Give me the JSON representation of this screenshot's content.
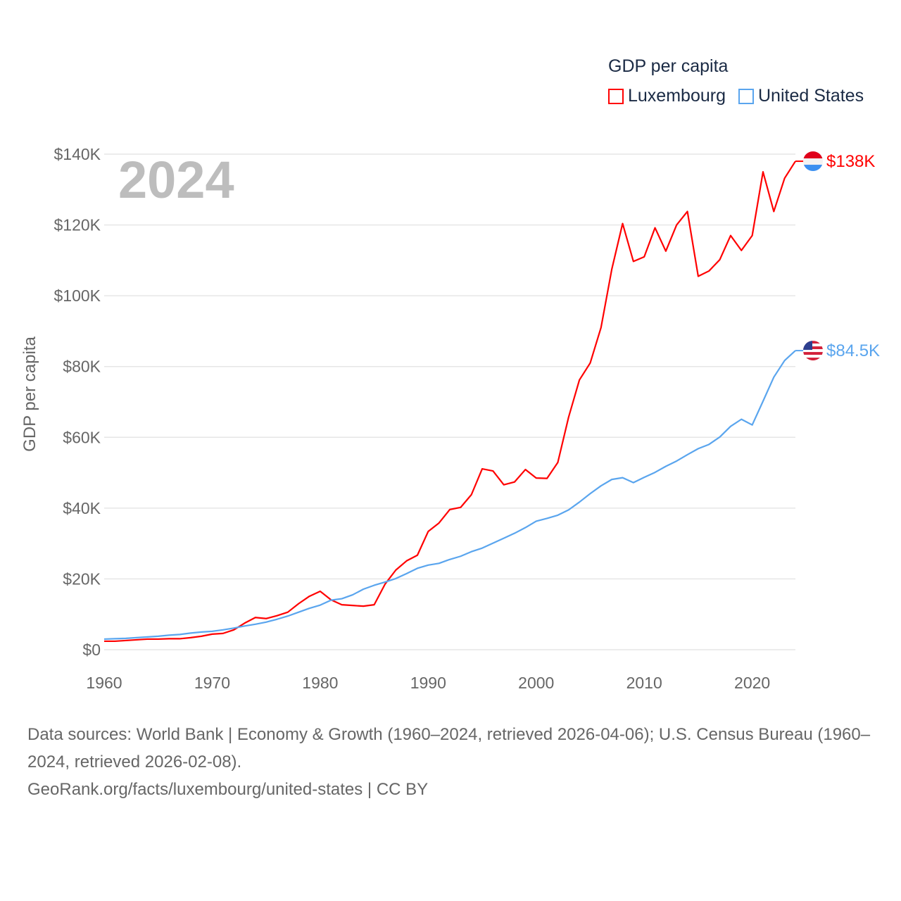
{
  "chart_data": {
    "type": "line",
    "legend_title": "GDP per capita",
    "ylabel": "GDP per capita",
    "xlabel": "",
    "year_label": "2024",
    "ylim": [
      0,
      140000
    ],
    "xlim": [
      1960,
      2024
    ],
    "yticks": [
      0,
      20000,
      40000,
      60000,
      80000,
      100000,
      120000,
      140000
    ],
    "ytick_labels": [
      "$0",
      "$20K",
      "$40K",
      "$60K",
      "$80K",
      "$100K",
      "$120K",
      "$140K"
    ],
    "xticks": [
      1960,
      1970,
      1980,
      1990,
      2000,
      2010,
      2020
    ],
    "xtick_labels": [
      "1960",
      "1970",
      "1980",
      "1990",
      "2000",
      "2010",
      "2020"
    ],
    "grid": true,
    "legend_placement": "top-right",
    "x": [
      1960,
      1961,
      1962,
      1963,
      1964,
      1965,
      1966,
      1967,
      1968,
      1969,
      1970,
      1971,
      1972,
      1973,
      1974,
      1975,
      1976,
      1977,
      1978,
      1979,
      1980,
      1981,
      1982,
      1983,
      1984,
      1985,
      1986,
      1987,
      1988,
      1989,
      1990,
      1991,
      1992,
      1993,
      1994,
      1995,
      1996,
      1997,
      1998,
      1999,
      2000,
      2001,
      2002,
      2003,
      2004,
      2005,
      2006,
      2007,
      2008,
      2009,
      2010,
      2011,
      2012,
      2013,
      2014,
      2015,
      2016,
      2017,
      2018,
      2019,
      2020,
      2021,
      2022,
      2023,
      2024
    ],
    "series": [
      {
        "name": "Luxembourg",
        "color": "#ff0000",
        "end_label": "$138K",
        "flag": "luxembourg-flag",
        "values": [
          2400,
          2400,
          2600,
          2800,
          3000,
          3000,
          3100,
          3100,
          3400,
          3800,
          4400,
          4600,
          5600,
          7500,
          9100,
          8800,
          9600,
          10600,
          13000,
          15100,
          16500,
          14100,
          12700,
          12500,
          12300,
          12700,
          18500,
          22500,
          25100,
          26700,
          33400,
          35800,
          39600,
          40200,
          43800,
          51100,
          50500,
          46600,
          47400,
          50900,
          48500,
          48400,
          52900,
          65700,
          76200,
          81000,
          91000,
          107500,
          120400,
          109700,
          111000,
          119200,
          112600,
          120000,
          123800,
          105500,
          107000,
          110200,
          117000,
          112800,
          117000,
          135000,
          123800,
          133200,
          138000
        ]
      },
      {
        "name": "United States",
        "color": "#5aa5ee",
        "end_label": "$84.5K",
        "flag": "us-flag",
        "values": [
          3000,
          3100,
          3200,
          3400,
          3600,
          3800,
          4100,
          4300,
          4700,
          5000,
          5200,
          5600,
          6100,
          6700,
          7200,
          7800,
          8600,
          9500,
          10600,
          11700,
          12600,
          14000,
          14400,
          15500,
          17100,
          18200,
          19100,
          20100,
          21500,
          23000,
          23900,
          24400,
          25500,
          26400,
          27700,
          28700,
          30100,
          31500,
          32900,
          34500,
          36300,
          37100,
          38000,
          39500,
          41700,
          44100,
          46300,
          48100,
          48600,
          47200,
          48700,
          50100,
          51800,
          53300,
          55100,
          56800,
          58000,
          60100,
          63100,
          65100,
          63500,
          70200,
          77000,
          81700,
          84500
        ]
      }
    ]
  },
  "footer": {
    "sources": "Data sources: World Bank | Economy & Growth (1960–2024, retrieved 2026-04-06); U.S. Census Bureau (1960–2024, retrieved 2026-02-08).",
    "link": "GeoRank.org/facts/luxembourg/united-states | CC BY"
  }
}
